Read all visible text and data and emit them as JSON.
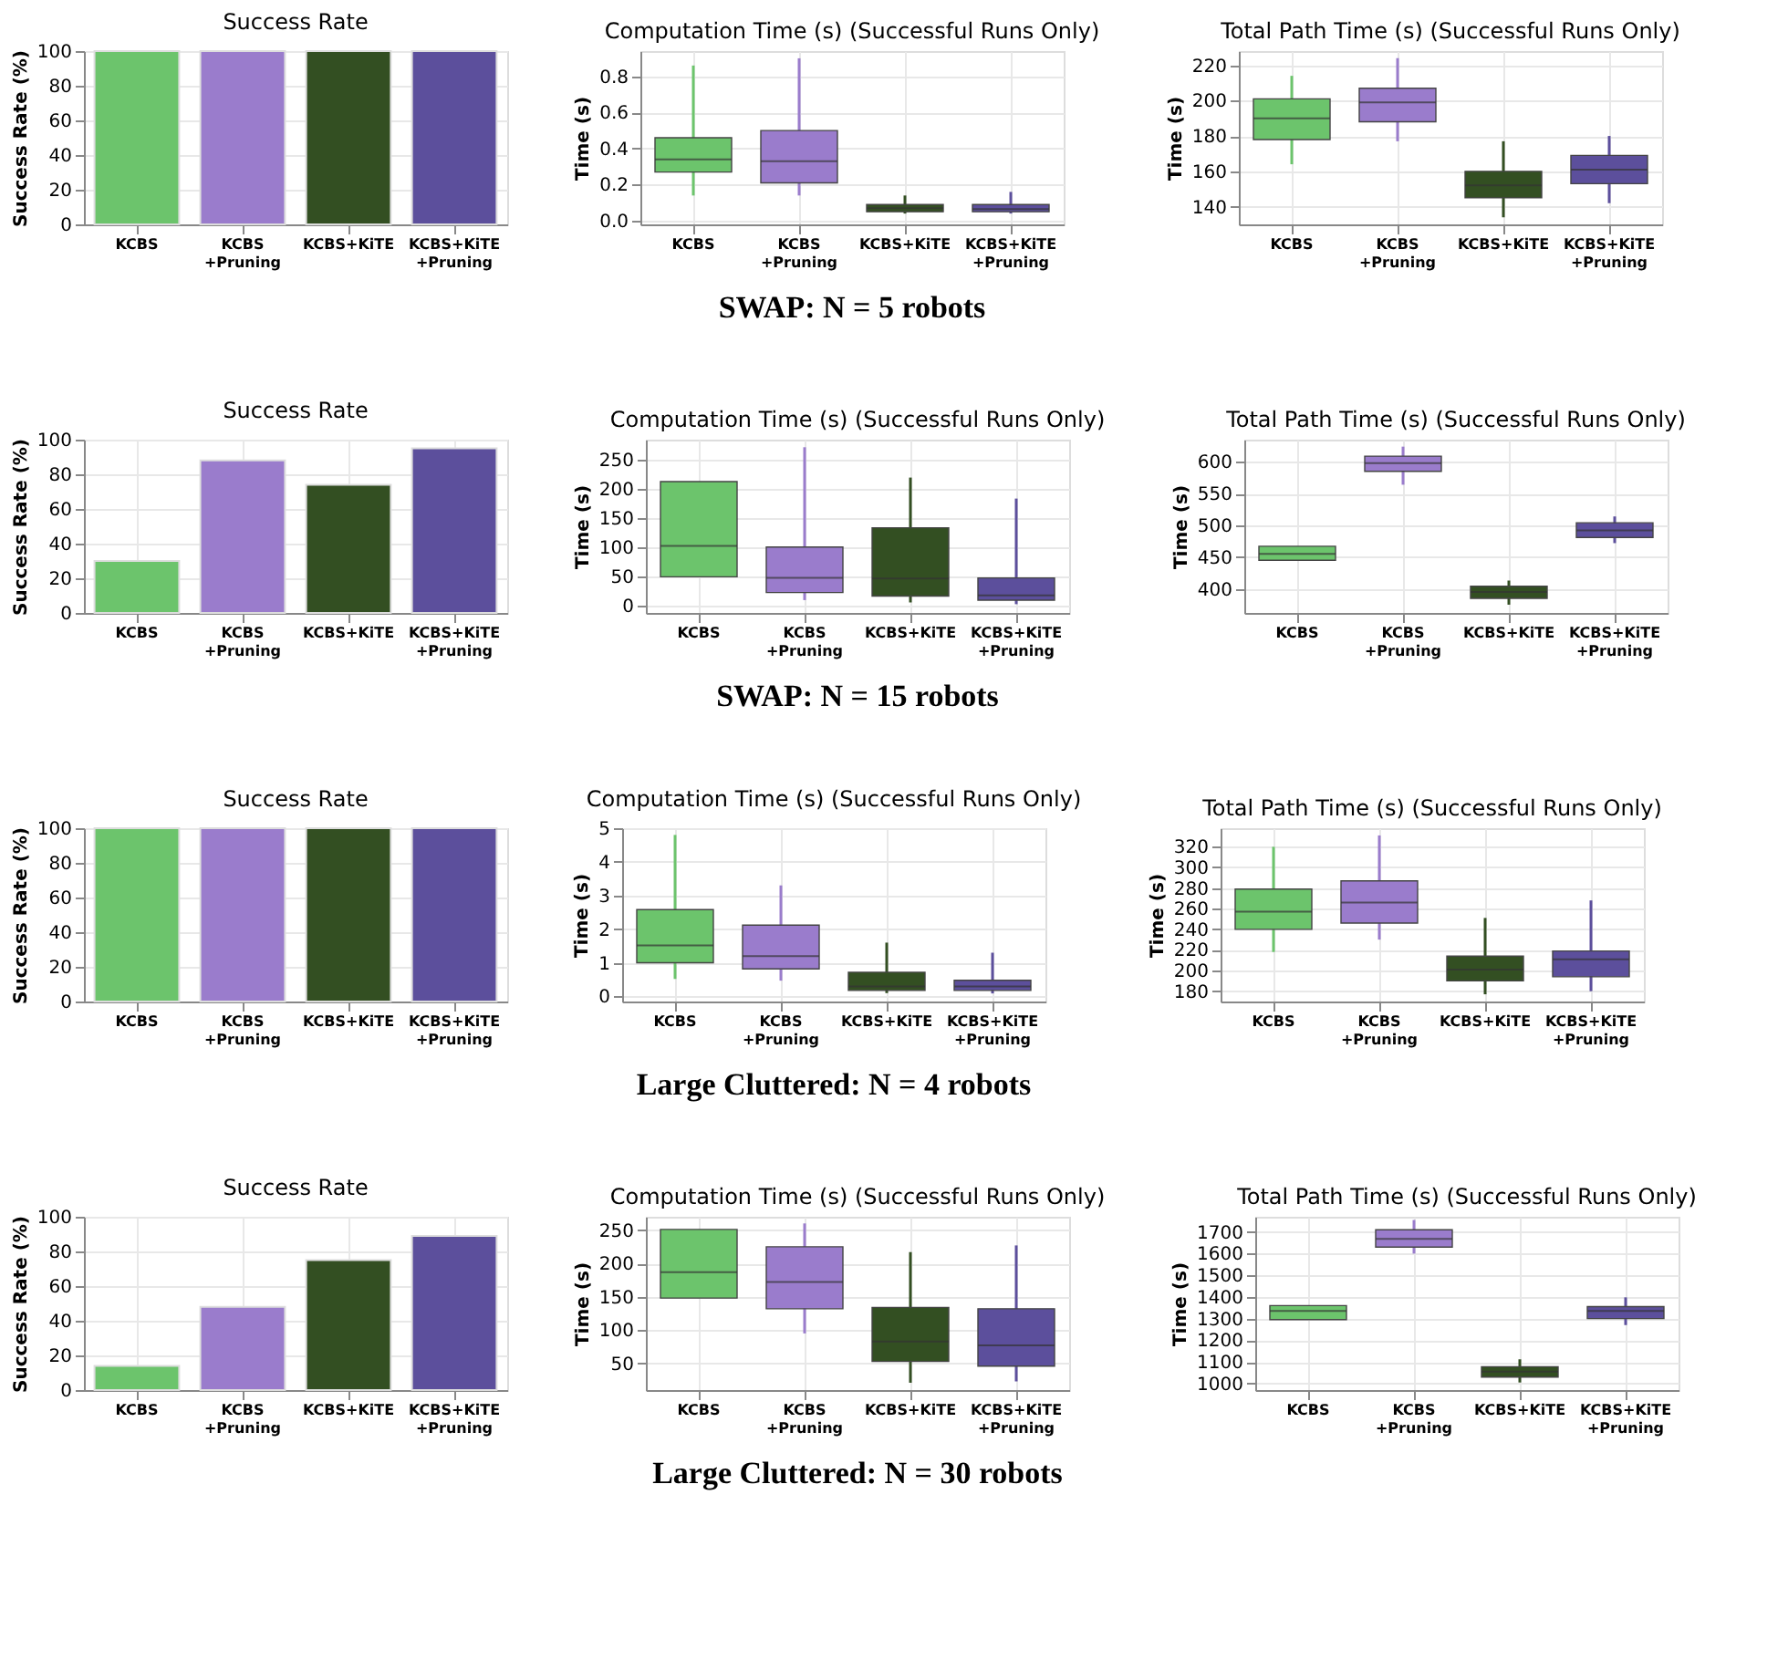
{
  "chart_data": [
    {
      "type": "bar",
      "title": "Success Rate",
      "ylabel": "Success Rate (%)",
      "categories": [
        "KCBS",
        "KCBS\n+Pruning",
        "KCBS+KiTE",
        "KCBS+KiTE\n+Pruning"
      ],
      "values": [
        100,
        100,
        100,
        100
      ],
      "colors": [
        "#6cc46c",
        "#9a7ccc",
        "#334f22",
        "#5c4f9c"
      ],
      "ylim": [
        0,
        100
      ],
      "yticks": [
        0,
        20,
        40,
        60,
        80,
        100
      ],
      "grid": true,
      "legend": false
    },
    {
      "type": "box",
      "title": "Computation Time (s) (Successful Runs Only)",
      "ylabel": "Time (s)",
      "categories": [
        "KCBS",
        "KCBS\n+Pruning",
        "KCBS+KiTE",
        "KCBS+KiTE\n+Pruning"
      ],
      "colors": [
        "#6cc46c",
        "#9a7ccc",
        "#334f22",
        "#5c4f9c"
      ],
      "ylim": [
        -0.02,
        0.94
      ],
      "yticks": [
        {
          "value": 0,
          "label": "0.0"
        },
        0.2,
        0.4,
        0.6,
        0.8
      ],
      "grid": true,
      "legend": false,
      "annotations": [
        "SWAP: N = 5 robots"
      ],
      "boxes": [
        {
          "low": 0.14,
          "q1": 0.27,
          "median": 0.34,
          "q3": 0.46,
          "high": 0.86
        },
        {
          "low": 0.14,
          "q1": 0.21,
          "median": 0.33,
          "q3": 0.5,
          "high": 0.9
        },
        {
          "low": 0.04,
          "q1": 0.05,
          "median": 0.07,
          "q3": 0.09,
          "high": 0.14
        },
        {
          "low": 0.04,
          "q1": 0.05,
          "median": 0.065,
          "q3": 0.09,
          "high": 0.16
        }
      ]
    },
    {
      "type": "box",
      "title": "Total Path Time (s) (Successful Runs Only)",
      "ylabel": "Time (s)",
      "categories": [
        "KCBS",
        "KCBS\n+Pruning",
        "KCBS+KiTE",
        "KCBS+KiTE\n+Pruning"
      ],
      "colors": [
        "#6cc46c",
        "#9a7ccc",
        "#334f22",
        "#5c4f9c"
      ],
      "ylim": [
        130,
        228
      ],
      "yticks": [
        140,
        160,
        180,
        200,
        220
      ],
      "grid": true,
      "legend": false,
      "boxes": [
        {
          "low": 164,
          "q1": 178,
          "median": 190,
          "q3": 201,
          "high": 214
        },
        {
          "low": 177,
          "q1": 188,
          "median": 199,
          "q3": 207,
          "high": 224
        },
        {
          "low": 134,
          "q1": 145,
          "median": 152,
          "q3": 160,
          "high": 177
        },
        {
          "low": 142,
          "q1": 153,
          "median": 161,
          "q3": 169,
          "high": 180
        }
      ]
    },
    {
      "type": "bar",
      "title": "Success Rate",
      "ylabel": "Success Rate (%)",
      "categories": [
        "KCBS",
        "KCBS\n+Pruning",
        "KCBS+KiTE",
        "KCBS+KiTE\n+Pruning"
      ],
      "values": [
        30,
        88,
        74,
        95
      ],
      "colors": [
        "#6cc46c",
        "#9a7ccc",
        "#334f22",
        "#5c4f9c"
      ],
      "ylim": [
        0,
        100
      ],
      "yticks": [
        0,
        20,
        40,
        60,
        80,
        100
      ],
      "grid": true,
      "legend": false
    },
    {
      "type": "box",
      "title": "Computation Time (s) (Successful Runs Only)",
      "ylabel": "Time (s)",
      "categories": [
        "KCBS",
        "KCBS\n+Pruning",
        "KCBS+KiTE",
        "KCBS+KiTE\n+Pruning"
      ],
      "colors": [
        "#6cc46c",
        "#9a7ccc",
        "#334f22",
        "#5c4f9c"
      ],
      "ylim": [
        -12,
        285
      ],
      "yticks": [
        0,
        50,
        100,
        150,
        200,
        250
      ],
      "grid": true,
      "legend": false,
      "annotations": [
        "SWAP: N = 15 robots"
      ],
      "boxes": [
        {
          "low": 50,
          "q1": 50,
          "median": 103,
          "q3": 213,
          "high": 213
        },
        {
          "low": 10,
          "q1": 23,
          "median": 48,
          "q3": 101,
          "high": 272
        },
        {
          "low": 6,
          "q1": 17,
          "median": 47,
          "q3": 134,
          "high": 220
        },
        {
          "low": 3,
          "q1": 10,
          "median": 18,
          "q3": 48,
          "high": 184
        }
      ]
    },
    {
      "type": "box",
      "title": "Total Path Time (s) (Successful Runs Only)",
      "ylabel": "Time (s)",
      "categories": [
        "KCBS",
        "KCBS\n+Pruning",
        "KCBS+KiTE",
        "KCBS+KiTE\n+Pruning"
      ],
      "colors": [
        "#6cc46c",
        "#9a7ccc",
        "#334f22",
        "#5c4f9c"
      ],
      "ylim": [
        362,
        635
      ],
      "yticks": [
        400,
        450,
        500,
        550,
        600
      ],
      "grid": true,
      "legend": false,
      "boxes": [
        {
          "low": 445,
          "q1": 445,
          "median": 455,
          "q3": 467,
          "high": 467
        },
        {
          "low": 564,
          "q1": 585,
          "median": 598,
          "q3": 609,
          "high": 624
        },
        {
          "low": 375,
          "q1": 385,
          "median": 395,
          "q3": 404,
          "high": 413
        },
        {
          "low": 472,
          "q1": 481,
          "median": 492,
          "q3": 504,
          "high": 514
        }
      ]
    },
    {
      "type": "bar",
      "title": "Success Rate",
      "ylabel": "Success Rate (%)",
      "categories": [
        "KCBS",
        "KCBS\n+Pruning",
        "KCBS+KiTE",
        "KCBS+KiTE\n+Pruning"
      ],
      "values": [
        100,
        100,
        100,
        100
      ],
      "colors": [
        "#6cc46c",
        "#9a7ccc",
        "#334f22",
        "#5c4f9c"
      ],
      "ylim": [
        0,
        100
      ],
      "yticks": [
        0,
        20,
        40,
        60,
        80,
        100
      ],
      "grid": true,
      "legend": false
    },
    {
      "type": "box",
      "title": "Computation Time (s) (Successful Runs Only)",
      "ylabel": "Time (s)",
      "categories": [
        "KCBS",
        "KCBS\n+Pruning",
        "KCBS+KiTE",
        "KCBS+KiTE\n+Pruning"
      ],
      "colors": [
        "#6cc46c",
        "#9a7ccc",
        "#334f22",
        "#5c4f9c"
      ],
      "ylim": [
        -0.15,
        5
      ],
      "yticks": [
        0,
        1,
        2,
        3,
        4,
        5
      ],
      "grid": true,
      "legend": false,
      "annotations": [
        "Large Cluttered: N = 4 robots"
      ],
      "boxes": [
        {
          "low": 0.52,
          "q1": 1.0,
          "median": 1.52,
          "q3": 2.58,
          "high": 4.8
        },
        {
          "low": 0.47,
          "q1": 0.82,
          "median": 1.2,
          "q3": 2.12,
          "high": 3.3
        },
        {
          "low": 0.1,
          "q1": 0.18,
          "median": 0.3,
          "q3": 0.72,
          "high": 1.6
        },
        {
          "low": 0.09,
          "q1": 0.18,
          "median": 0.3,
          "q3": 0.48,
          "high": 1.3
        }
      ]
    },
    {
      "type": "box",
      "title": "Total Path Time (s) (Successful Runs Only)",
      "ylabel": "Time (s)",
      "categories": [
        "KCBS",
        "KCBS\n+Pruning",
        "KCBS+KiTE",
        "KCBS+KiTE\n+Pruning"
      ],
      "colors": [
        "#6cc46c",
        "#9a7ccc",
        "#334f22",
        "#5c4f9c"
      ],
      "ylim": [
        170,
        338
      ],
      "yticks": [
        180,
        200,
        220,
        240,
        260,
        280,
        300,
        320
      ],
      "grid": true,
      "legend": false,
      "boxes": [
        {
          "low": 218,
          "q1": 240,
          "median": 257,
          "q3": 279,
          "high": 320
        },
        {
          "low": 230,
          "q1": 246,
          "median": 266,
          "q3": 287,
          "high": 331
        },
        {
          "low": 177,
          "q1": 190,
          "median": 201,
          "q3": 214,
          "high": 251
        },
        {
          "low": 180,
          "q1": 194,
          "median": 211,
          "q3": 219,
          "high": 268
        }
      ]
    },
    {
      "type": "bar",
      "title": "Success Rate",
      "ylabel": "Success Rate (%)",
      "categories": [
        "KCBS",
        "KCBS\n+Pruning",
        "KCBS+KiTE",
        "KCBS+KiTE\n+Pruning"
      ],
      "values": [
        14,
        48,
        75,
        89
      ],
      "colors": [
        "#6cc46c",
        "#9a7ccc",
        "#334f22",
        "#5c4f9c"
      ],
      "ylim": [
        0,
        100
      ],
      "yticks": [
        0,
        20,
        40,
        60,
        80,
        100
      ],
      "grid": true,
      "legend": false
    },
    {
      "type": "box",
      "title": "Computation Time (s) (Successful Runs Only)",
      "ylabel": "Time (s)",
      "categories": [
        "KCBS",
        "KCBS\n+Pruning",
        "KCBS+KiTE",
        "KCBS+KiTE\n+Pruning"
      ],
      "colors": [
        "#6cc46c",
        "#9a7ccc",
        "#334f22",
        "#5c4f9c"
      ],
      "ylim": [
        10,
        270
      ],
      "yticks": [
        50,
        100,
        150,
        200,
        250
      ],
      "grid": true,
      "legend": false,
      "annotations": [
        "Large Cluttered: N = 30 robots"
      ],
      "boxes": [
        {
          "low": 148,
          "q1": 148,
          "median": 187,
          "q3": 251,
          "high": 251
        },
        {
          "low": 95,
          "q1": 132,
          "median": 172,
          "q3": 225,
          "high": 260
        },
        {
          "low": 21,
          "q1": 53,
          "median": 83,
          "q3": 134,
          "high": 217
        },
        {
          "low": 23,
          "q1": 46,
          "median": 77,
          "q3": 132,
          "high": 227
        }
      ]
    },
    {
      "type": "box",
      "title": "Total Path Time (s) (Successful Runs Only)",
      "ylabel": "Time (s)",
      "categories": [
        "KCBS",
        "KCBS\n+Pruning",
        "KCBS+KiTE",
        "KCBS+KiTE\n+Pruning"
      ],
      "colors": [
        "#6cc46c",
        "#9a7ccc",
        "#334f22",
        "#5c4f9c"
      ],
      "ylim": [
        970,
        1770
      ],
      "yticks": [
        1000,
        1100,
        1200,
        1300,
        1400,
        1500,
        1600,
        1700
      ],
      "grid": true,
      "legend": false,
      "boxes": [
        {
          "low": 1295,
          "q1": 1295,
          "median": 1335,
          "q3": 1360,
          "high": 1360
        },
        {
          "low": 1600,
          "q1": 1630,
          "median": 1668,
          "q3": 1710,
          "high": 1755
        },
        {
          "low": 1005,
          "q1": 1030,
          "median": 1055,
          "q3": 1078,
          "high": 1112
        },
        {
          "low": 1270,
          "q1": 1300,
          "median": 1335,
          "q3": 1355,
          "high": 1398
        }
      ]
    }
  ]
}
